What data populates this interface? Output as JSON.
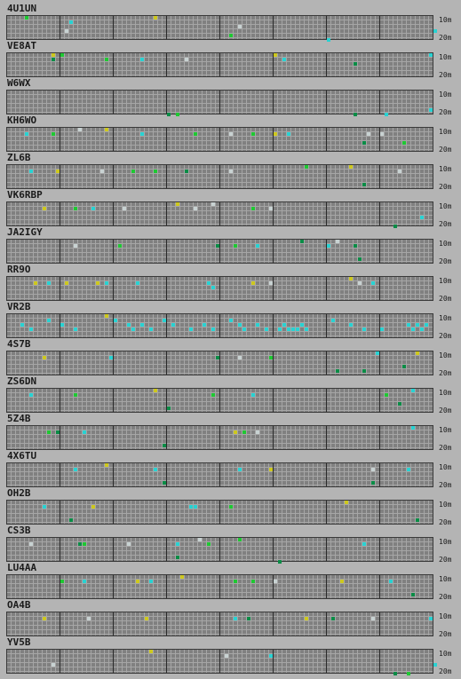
{
  "band_labels": {
    "top": "10m",
    "bottom": "20m"
  },
  "colors": {
    "grid_bg": "#808080",
    "hour_line": "#2a2a2a",
    "minor_line": "#a6a6a6",
    "page_bg": "#b4b4b4"
  },
  "spot_colors": [
    "#1ec832",
    "#0a8c46",
    "#28d2d2",
    "#cdc81e",
    "#c8d2d2"
  ],
  "stations": [
    {
      "callsign": "4U1UN",
      "cells": [
        [
          4,
          0,
          0
        ],
        [
          14,
          1,
          2
        ],
        [
          33,
          0,
          3
        ],
        [
          52,
          2,
          4
        ],
        [
          13,
          3,
          4
        ],
        [
          50,
          4,
          0
        ],
        [
          72,
          5,
          2
        ],
        [
          96,
          3,
          2
        ]
      ]
    },
    {
      "callsign": "VE8AT",
      "cells": [
        [
          10,
          0,
          3
        ],
        [
          10,
          1,
          1
        ],
        [
          12,
          0,
          0
        ],
        [
          22,
          1,
          0
        ],
        [
          30,
          1,
          2
        ],
        [
          40,
          1,
          4
        ],
        [
          60,
          0,
          3
        ],
        [
          62,
          1,
          2
        ],
        [
          78,
          2,
          1
        ],
        [
          95,
          0,
          2
        ]
      ]
    },
    {
      "callsign": "W6WX",
      "cells": [
        [
          36,
          5,
          1
        ],
        [
          38,
          5,
          0
        ],
        [
          78,
          5,
          1
        ],
        [
          85,
          5,
          2
        ],
        [
          95,
          4,
          2
        ]
      ]
    },
    {
      "callsign": "KH6WO",
      "cells": [
        [
          4,
          1,
          2
        ],
        [
          10,
          1,
          0
        ],
        [
          16,
          0,
          4
        ],
        [
          22,
          0,
          3
        ],
        [
          30,
          1,
          2
        ],
        [
          42,
          1,
          0
        ],
        [
          50,
          1,
          4
        ],
        [
          55,
          1,
          0
        ],
        [
          60,
          1,
          3
        ],
        [
          63,
          1,
          2
        ],
        [
          81,
          1,
          4
        ],
        [
          84,
          1,
          4
        ],
        [
          80,
          3,
          1
        ],
        [
          89,
          3,
          0
        ]
      ]
    },
    {
      "callsign": "ZL6B",
      "cells": [
        [
          5,
          1,
          2
        ],
        [
          11,
          1,
          3
        ],
        [
          21,
          1,
          4
        ],
        [
          28,
          1,
          0
        ],
        [
          33,
          1,
          0
        ],
        [
          40,
          1,
          1
        ],
        [
          50,
          1,
          4
        ],
        [
          67,
          0,
          0
        ],
        [
          77,
          0,
          3
        ],
        [
          80,
          4,
          1
        ],
        [
          88,
          1,
          4
        ]
      ]
    },
    {
      "callsign": "VK6RBP",
      "cells": [
        [
          8,
          1,
          3
        ],
        [
          15,
          1,
          0
        ],
        [
          19,
          1,
          2
        ],
        [
          26,
          1,
          4
        ],
        [
          38,
          0,
          3
        ],
        [
          42,
          1,
          4
        ],
        [
          46,
          0,
          4
        ],
        [
          55,
          1,
          0
        ],
        [
          59,
          1,
          4
        ],
        [
          93,
          3,
          2
        ],
        [
          87,
          5,
          1
        ]
      ]
    },
    {
      "callsign": "JA2IGY",
      "cells": [
        [
          15,
          1,
          4
        ],
        [
          25,
          1,
          0
        ],
        [
          47,
          1,
          1
        ],
        [
          51,
          1,
          0
        ],
        [
          56,
          1,
          2
        ],
        [
          66,
          0,
          1
        ],
        [
          72,
          1,
          2
        ],
        [
          74,
          0,
          4
        ],
        [
          78,
          1,
          1
        ],
        [
          79,
          4,
          1
        ]
      ]
    },
    {
      "callsign": "RR9O",
      "cells": [
        [
          6,
          1,
          3
        ],
        [
          9,
          1,
          2
        ],
        [
          13,
          1,
          3
        ],
        [
          20,
          1,
          3
        ],
        [
          22,
          1,
          2
        ],
        [
          29,
          1,
          2
        ],
        [
          45,
          1,
          2
        ],
        [
          46,
          2,
          2
        ],
        [
          55,
          1,
          3
        ],
        [
          59,
          1,
          4
        ],
        [
          77,
          0,
          3
        ],
        [
          79,
          1,
          4
        ],
        [
          82,
          1,
          2
        ]
      ]
    },
    {
      "callsign": "VR2B",
      "cells": [
        [
          3,
          2,
          2
        ],
        [
          5,
          3,
          2
        ],
        [
          9,
          1,
          2
        ],
        [
          12,
          2,
          2
        ],
        [
          15,
          3,
          2
        ],
        [
          22,
          0,
          3
        ],
        [
          24,
          1,
          2
        ],
        [
          27,
          2,
          2
        ],
        [
          28,
          3,
          2
        ],
        [
          30,
          2,
          2
        ],
        [
          32,
          3,
          2
        ],
        [
          35,
          1,
          2
        ],
        [
          37,
          2,
          2
        ],
        [
          41,
          3,
          2
        ],
        [
          44,
          2,
          2
        ],
        [
          46,
          3,
          2
        ],
        [
          50,
          1,
          2
        ],
        [
          52,
          2,
          2
        ],
        [
          53,
          3,
          2
        ],
        [
          56,
          2,
          2
        ],
        [
          58,
          3,
          2
        ],
        [
          61,
          3,
          2
        ],
        [
          62,
          2,
          2
        ],
        [
          63,
          3,
          2
        ],
        [
          64,
          3,
          2
        ],
        [
          65,
          3,
          2
        ],
        [
          66,
          2,
          2
        ],
        [
          67,
          3,
          2
        ],
        [
          73,
          1,
          2
        ],
        [
          77,
          2,
          2
        ],
        [
          80,
          3,
          2
        ],
        [
          84,
          3,
          2
        ],
        [
          90,
          2,
          2
        ],
        [
          91,
          3,
          2
        ],
        [
          92,
          2,
          2
        ],
        [
          93,
          3,
          2
        ],
        [
          94,
          2,
          2
        ]
      ]
    },
    {
      "callsign": "4S7B",
      "cells": [
        [
          8,
          1,
          3
        ],
        [
          23,
          1,
          2
        ],
        [
          47,
          1,
          1
        ],
        [
          52,
          1,
          4
        ],
        [
          59,
          1,
          0
        ],
        [
          74,
          4,
          1
        ],
        [
          80,
          4,
          1
        ],
        [
          83,
          0,
          2
        ],
        [
          89,
          3,
          1
        ],
        [
          92,
          0,
          3
        ]
      ]
    },
    {
      "callsign": "ZS6DN",
      "cells": [
        [
          5,
          1,
          2
        ],
        [
          15,
          1,
          0
        ],
        [
          33,
          0,
          3
        ],
        [
          36,
          4,
          1
        ],
        [
          46,
          1,
          0
        ],
        [
          55,
          1,
          2
        ],
        [
          85,
          1,
          0
        ],
        [
          88,
          3,
          1
        ],
        [
          91,
          0,
          2
        ]
      ]
    },
    {
      "callsign": "5Z4B",
      "cells": [
        [
          9,
          1,
          0
        ],
        [
          11,
          1,
          1
        ],
        [
          17,
          1,
          2
        ],
        [
          35,
          4,
          1
        ],
        [
          51,
          1,
          3
        ],
        [
          53,
          1,
          0
        ],
        [
          56,
          1,
          4
        ],
        [
          91,
          0,
          2
        ]
      ]
    },
    {
      "callsign": "4X6TU",
      "cells": [
        [
          15,
          1,
          2
        ],
        [
          22,
          0,
          3
        ],
        [
          33,
          1,
          2
        ],
        [
          35,
          4,
          1
        ],
        [
          52,
          1,
          2
        ],
        [
          59,
          1,
          3
        ],
        [
          82,
          1,
          4
        ],
        [
          82,
          4,
          1
        ],
        [
          90,
          1,
          2
        ]
      ]
    },
    {
      "callsign": "OH2B",
      "cells": [
        [
          8,
          1,
          2
        ],
        [
          19,
          1,
          3
        ],
        [
          41,
          1,
          2
        ],
        [
          42,
          1,
          2
        ],
        [
          50,
          1,
          0
        ],
        [
          76,
          0,
          3
        ],
        [
          14,
          4,
          1
        ],
        [
          92,
          4,
          1
        ]
      ]
    },
    {
      "callsign": "CS3B",
      "cells": [
        [
          5,
          1,
          4
        ],
        [
          16,
          1,
          1
        ],
        [
          17,
          1,
          0
        ],
        [
          27,
          1,
          4
        ],
        [
          38,
          1,
          2
        ],
        [
          43,
          0,
          4
        ],
        [
          45,
          1,
          0
        ],
        [
          52,
          0,
          0
        ],
        [
          80,
          1,
          2
        ],
        [
          38,
          4,
          1
        ],
        [
          61,
          5,
          1
        ]
      ]
    },
    {
      "callsign": "LU4AA",
      "cells": [
        [
          12,
          1,
          0
        ],
        [
          17,
          1,
          2
        ],
        [
          29,
          1,
          3
        ],
        [
          32,
          1,
          2
        ],
        [
          39,
          0,
          3
        ],
        [
          51,
          1,
          0
        ],
        [
          55,
          1,
          0
        ],
        [
          60,
          1,
          4
        ],
        [
          75,
          1,
          3
        ],
        [
          86,
          1,
          2
        ],
        [
          91,
          4,
          1
        ]
      ]
    },
    {
      "callsign": "OA4B",
      "cells": [
        [
          8,
          1,
          3
        ],
        [
          18,
          1,
          4
        ],
        [
          31,
          1,
          3
        ],
        [
          51,
          1,
          2
        ],
        [
          54,
          1,
          1
        ],
        [
          67,
          1,
          3
        ],
        [
          73,
          1,
          1
        ],
        [
          82,
          1,
          4
        ],
        [
          95,
          1,
          2
        ]
      ]
    },
    {
      "callsign": "YV5B",
      "cells": [
        [
          10,
          3,
          4
        ],
        [
          32,
          0,
          3
        ],
        [
          49,
          1,
          4
        ],
        [
          59,
          1,
          2
        ],
        [
          87,
          5,
          1
        ],
        [
          90,
          5,
          0
        ],
        [
          96,
          3,
          2
        ]
      ]
    }
  ]
}
